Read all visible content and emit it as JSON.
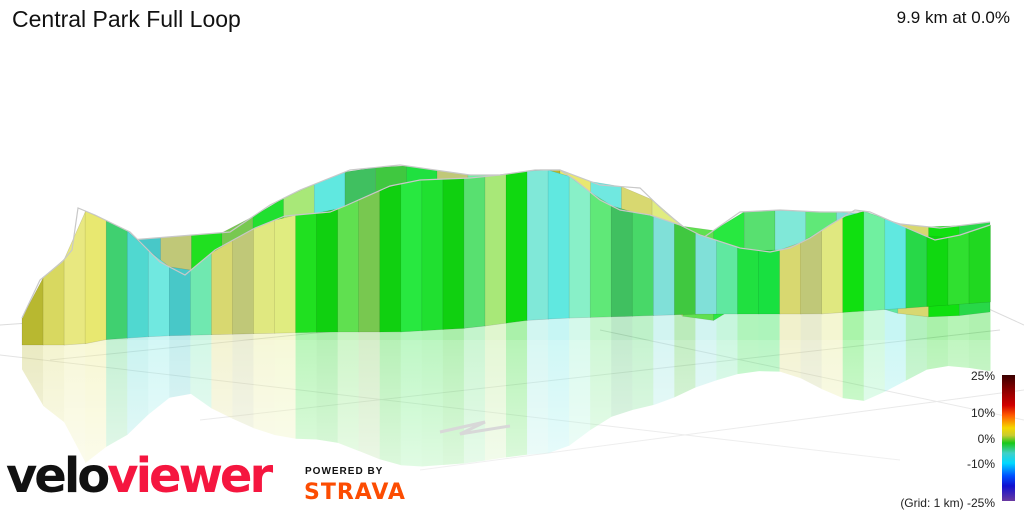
{
  "header": {
    "title": "Central Park Full Loop",
    "summary": "9.9 km at 0.0%"
  },
  "legend": {
    "labels": [
      "25%",
      "10%",
      "0%",
      "-10%",
      "(Grid: 1 km) -25%"
    ],
    "gradient_stops": [
      {
        "pct": 25,
        "color": "#3a0000"
      },
      {
        "pct": 10,
        "color": "#ff5a00"
      },
      {
        "pct": 0,
        "color": "#18c818"
      },
      {
        "pct": -10,
        "color": "#00d8ff"
      },
      {
        "pct": -25,
        "color": "#6a3aa0"
      }
    ],
    "grid_note": "Grid: 1 km"
  },
  "branding": {
    "logo_part1": "velo",
    "logo_part2": "viewer",
    "powered_by": "POWERED BY",
    "strava": "STRAVA"
  },
  "chart_data": {
    "type": "area",
    "title": "Central Park Full Loop",
    "subtitle": "9.9 km at 0.0%",
    "xlabel": "",
    "ylabel": "",
    "description": "3D elevation profile of a loop route, segments colored by gradient",
    "color_scale": {
      "min": -25,
      "max": 25,
      "unit": "%"
    },
    "grid": "1 km",
    "front_wall": {
      "top_points": [
        [
          22,
          318
        ],
        [
          40,
          280
        ],
        [
          62,
          262
        ],
        [
          72,
          250
        ],
        [
          78,
          208
        ],
        [
          95,
          215
        ],
        [
          130,
          232
        ],
        [
          160,
          262
        ],
        [
          185,
          275
        ],
        [
          215,
          250
        ],
        [
          255,
          228
        ],
        [
          285,
          216
        ],
        [
          330,
          212
        ],
        [
          345,
          206
        ],
        [
          390,
          186
        ],
        [
          420,
          180
        ],
        [
          470,
          178
        ],
        [
          500,
          175
        ],
        [
          535,
          170
        ],
        [
          560,
          170
        ],
        [
          575,
          180
        ],
        [
          600,
          200
        ],
        [
          620,
          210
        ],
        [
          650,
          215
        ],
        [
          680,
          225
        ],
        [
          700,
          235
        ],
        [
          740,
          248
        ],
        [
          770,
          252
        ],
        [
          790,
          248
        ],
        [
          810,
          238
        ],
        [
          830,
          225
        ],
        [
          855,
          210
        ],
        [
          870,
          212
        ],
        [
          900,
          225
        ],
        [
          935,
          240
        ],
        [
          960,
          235
        ],
        [
          990,
          225
        ]
      ],
      "bottom_points": [
        [
          22,
          345
        ],
        [
          80,
          345
        ],
        [
          100,
          340
        ],
        [
          160,
          336
        ],
        [
          240,
          334
        ],
        [
          330,
          332
        ],
        [
          400,
          332
        ],
        [
          470,
          328
        ],
        [
          530,
          320
        ],
        [
          570,
          318
        ],
        [
          640,
          316
        ],
        [
          700,
          314
        ],
        [
          760,
          314
        ],
        [
          820,
          314
        ],
        [
          880,
          310
        ],
        [
          990,
          302
        ]
      ],
      "segment_colors": [
        "#b8b830",
        "#d8d860",
        "#e8e880",
        "#e8e870",
        "#40d070",
        "#50d8d0",
        "#70e8e0",
        "#48c8c8",
        "#70e8b0",
        "#d8d870",
        "#c0c878",
        "#e0e880",
        "#e0ec80",
        "#20e020",
        "#10d010",
        "#60e050",
        "#78c850",
        "#10d010",
        "#28e840",
        "#20e030",
        "#10d010",
        "#58e070",
        "#a8e878",
        "#10d810",
        "#80e8d8",
        "#60e8e0",
        "#88f0c8",
        "#60e878",
        "#40c060",
        "#48d868",
        "#80e0d8",
        "#40c840",
        "#80e0d8",
        "#60e8a0",
        "#20e040",
        "#18e040",
        "#d8d870",
        "#c0c878",
        "#e0e880",
        "#10e010",
        "#70f0a0",
        "#60e8e0",
        "#28d848",
        "#10d810",
        "#30e030",
        "#20d820"
      ]
    },
    "back_wall": {
      "top_points": [
        [
          130,
          240
        ],
        [
          230,
          232
        ],
        [
          270,
          205
        ],
        [
          300,
          190
        ],
        [
          350,
          170
        ],
        [
          400,
          165
        ],
        [
          470,
          175
        ],
        [
          500,
          175
        ],
        [
          540,
          170
        ],
        [
          560,
          170
        ],
        [
          600,
          185
        ],
        [
          640,
          188
        ],
        [
          665,
          212
        ],
        [
          700,
          240
        ],
        [
          740,
          212
        ],
        [
          780,
          210
        ],
        [
          820,
          212
        ],
        [
          860,
          212
        ],
        [
          900,
          224
        ],
        [
          940,
          228
        ],
        [
          990,
          222
        ]
      ]
    }
  }
}
